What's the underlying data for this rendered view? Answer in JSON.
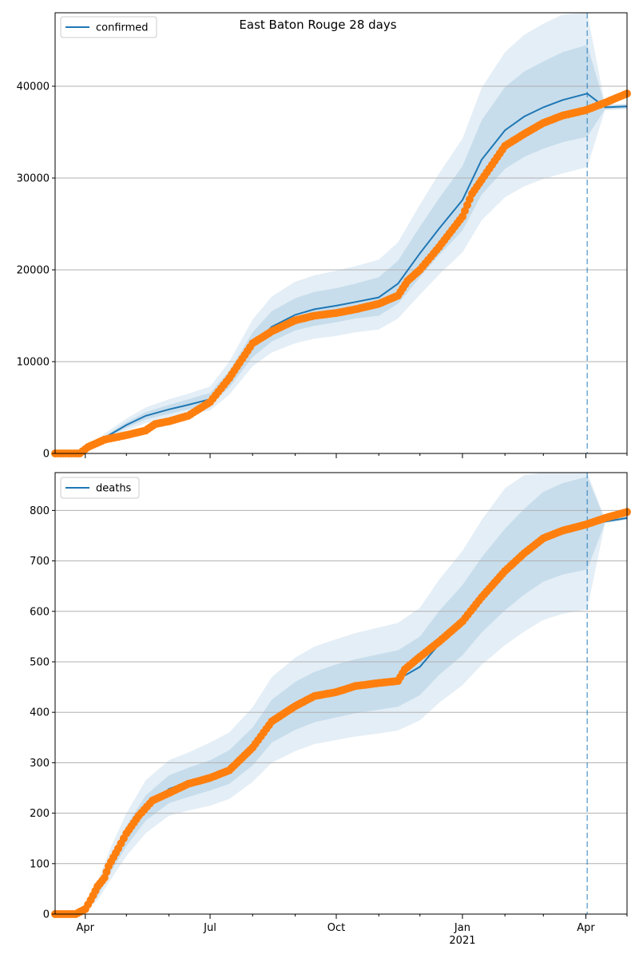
{
  "figure": {
    "title": "East Baton Rouge 28 days"
  },
  "colors": {
    "model_line": "#1f77b4",
    "observed": "#ff7f0e",
    "band": "#1f77b4",
    "grid": "#b0b0b0"
  },
  "x_ticks": {
    "major": [
      {
        "label": "Apr",
        "date": "2020-04-01",
        "sublabel": ""
      },
      {
        "label": "Jul",
        "date": "2020-07-01",
        "sublabel": ""
      },
      {
        "label": "Oct",
        "date": "2020-10-01",
        "sublabel": ""
      },
      {
        "label": "Jan",
        "date": "2021-01-01",
        "sublabel": "2021"
      },
      {
        "label": "Apr",
        "date": "2021-04-01",
        "sublabel": ""
      }
    ],
    "minor": [
      "2020-05-01",
      "2020-06-01",
      "2020-08-01",
      "2020-09-01",
      "2020-11-01",
      "2020-12-01",
      "2021-02-01",
      "2021-03-01",
      "2021-05-01"
    ]
  },
  "chart_data": [
    {
      "type": "line",
      "panel": "top",
      "legend": [
        "confirmed"
      ],
      "legend_position": "top-left",
      "grid": "horizontal",
      "xlim": [
        "2020-03-10",
        "2021-05-01"
      ],
      "ylim": [
        0,
        48000
      ],
      "y_ticks": [
        0,
        10000,
        20000,
        30000,
        40000
      ],
      "forecast_start": "2021-04-02",
      "model": {
        "name": "confirmed",
        "x": [
          "2020-03-10",
          "2020-03-25",
          "2020-04-01",
          "2020-04-15",
          "2020-05-01",
          "2020-05-15",
          "2020-06-01",
          "2020-06-15",
          "2020-07-01",
          "2020-07-15",
          "2020-08-01",
          "2020-08-15",
          "2020-09-01",
          "2020-09-15",
          "2020-10-01",
          "2020-10-15",
          "2020-11-01",
          "2020-11-15",
          "2020-12-01",
          "2020-12-15",
          "2021-01-01",
          "2021-01-15",
          "2021-02-01",
          "2021-02-15",
          "2021-03-01",
          "2021-03-15",
          "2021-04-02",
          "2021-04-15",
          "2021-05-01"
        ],
        "y": [
          0,
          0,
          500,
          1700,
          3100,
          4100,
          4800,
          5300,
          5900,
          8000,
          11800,
          13800,
          15100,
          15700,
          16100,
          16500,
          17000,
          18500,
          21800,
          24500,
          27600,
          32000,
          35200,
          36700,
          37700,
          38500,
          39200,
          37700,
          37800
        ],
        "band_50": [
          [
            0,
            0
          ],
          [
            0,
            0
          ],
          [
            450,
            550
          ],
          [
            1550,
            1900
          ],
          [
            2800,
            3400
          ],
          [
            3700,
            4500
          ],
          [
            4300,
            5300
          ],
          [
            4800,
            5900
          ],
          [
            5300,
            6600
          ],
          [
            7200,
            9000
          ],
          [
            10500,
            13200
          ],
          [
            12200,
            15500
          ],
          [
            13400,
            16900
          ],
          [
            13900,
            17600
          ],
          [
            14300,
            18000
          ],
          [
            14700,
            18500
          ],
          [
            15000,
            19200
          ],
          [
            16300,
            21000
          ],
          [
            19200,
            24700
          ],
          [
            21600,
            27800
          ],
          [
            24300,
            31300
          ],
          [
            28200,
            36300
          ],
          [
            31000,
            39900
          ],
          [
            32300,
            41600
          ],
          [
            33200,
            42700
          ],
          [
            33900,
            43700
          ],
          [
            34500,
            44500
          ],
          [
            37500,
            37900
          ],
          [
            37600,
            38000
          ]
        ],
        "band_80": [
          [
            0,
            0
          ],
          [
            0,
            0
          ],
          [
            380,
            650
          ],
          [
            1350,
            2150
          ],
          [
            2500,
            3800
          ],
          [
            3300,
            5000
          ],
          [
            3800,
            5900
          ],
          [
            4200,
            6500
          ],
          [
            4700,
            7300
          ],
          [
            6400,
            10000
          ],
          [
            9500,
            14600
          ],
          [
            11000,
            17100
          ],
          [
            12000,
            18700
          ],
          [
            12500,
            19400
          ],
          [
            12800,
            19900
          ],
          [
            13200,
            20400
          ],
          [
            13500,
            21100
          ],
          [
            14700,
            23000
          ],
          [
            17300,
            27100
          ],
          [
            19500,
            30500
          ],
          [
            21900,
            34300
          ],
          [
            25400,
            39800
          ],
          [
            27900,
            43700
          ],
          [
            29100,
            45600
          ],
          [
            29900,
            46800
          ],
          [
            30500,
            47800
          ],
          [
            31200,
            48000
          ],
          [
            37400,
            38000
          ],
          [
            37500,
            38100
          ]
        ]
      },
      "observed": {
        "x": [
          "2020-03-10",
          "2020-03-28",
          "2020-04-03",
          "2020-04-15",
          "2020-05-01",
          "2020-05-15",
          "2020-05-22",
          "2020-06-01",
          "2020-06-15",
          "2020-07-01",
          "2020-07-15",
          "2020-08-01",
          "2020-08-15",
          "2020-09-01",
          "2020-09-15",
          "2020-10-01",
          "2020-10-15",
          "2020-11-01",
          "2020-11-15",
          "2020-11-22",
          "2020-12-01",
          "2020-12-15",
          "2021-01-01",
          "2021-01-08",
          "2021-01-15",
          "2021-02-01",
          "2021-02-15",
          "2021-03-01",
          "2021-03-15",
          "2021-04-01",
          "2021-04-15",
          "2021-05-01"
        ],
        "y": [
          0,
          0,
          700,
          1500,
          2000,
          2500,
          3200,
          3500,
          4100,
          5600,
          8200,
          12000,
          13300,
          14500,
          15000,
          15300,
          15700,
          16300,
          17200,
          18800,
          20000,
          22500,
          25800,
          28300,
          29800,
          33500,
          34800,
          36000,
          36800,
          37400,
          38200,
          39200
        ]
      }
    },
    {
      "type": "line",
      "panel": "bottom",
      "legend": [
        "deaths"
      ],
      "legend_position": "top-left",
      "grid": "horizontal",
      "xlim": [
        "2020-03-10",
        "2021-05-01"
      ],
      "ylim": [
        0,
        875
      ],
      "y_ticks": [
        0,
        100,
        200,
        300,
        400,
        500,
        600,
        700,
        800
      ],
      "forecast_start": "2021-04-02",
      "model": {
        "name": "deaths",
        "x": [
          "2020-03-10",
          "2020-03-25",
          "2020-04-01",
          "2020-04-10",
          "2020-04-20",
          "2020-05-01",
          "2020-05-15",
          "2020-06-01",
          "2020-06-15",
          "2020-07-01",
          "2020-07-15",
          "2020-08-01",
          "2020-08-15",
          "2020-09-01",
          "2020-09-15",
          "2020-10-01",
          "2020-10-15",
          "2020-11-01",
          "2020-11-15",
          "2020-12-01",
          "2020-12-15",
          "2021-01-01",
          "2021-01-15",
          "2021-02-01",
          "2021-02-15",
          "2021-03-01",
          "2021-03-15",
          "2021-04-02",
          "2021-04-15",
          "2021-05-01"
        ],
        "y": [
          0,
          0,
          12,
          45,
          100,
          155,
          210,
          248,
          262,
          275,
          290,
          330,
          380,
          410,
          428,
          440,
          450,
          458,
          465,
          490,
          535,
          580,
          630,
          680,
          715,
          745,
          760,
          772,
          778,
          785
        ],
        "band_50": [
          [
            0,
            0
          ],
          [
            0,
            0
          ],
          [
            8,
            16
          ],
          [
            35,
            55
          ],
          [
            85,
            115
          ],
          [
            135,
            175
          ],
          [
            185,
            235
          ],
          [
            220,
            275
          ],
          [
            232,
            290
          ],
          [
            245,
            305
          ],
          [
            258,
            325
          ],
          [
            295,
            370
          ],
          [
            340,
            425
          ],
          [
            365,
            460
          ],
          [
            380,
            480
          ],
          [
            390,
            495
          ],
          [
            398,
            505
          ],
          [
            405,
            515
          ],
          [
            411,
            523
          ],
          [
            434,
            550
          ],
          [
            474,
            601
          ],
          [
            513,
            652
          ],
          [
            558,
            707
          ],
          [
            602,
            764
          ],
          [
            633,
            803
          ],
          [
            659,
            837
          ],
          [
            673,
            854
          ],
          [
            683,
            867
          ],
          [
            776,
            781
          ],
          [
            783,
            788
          ]
        ],
        "band_80": [
          [
            0,
            0
          ],
          [
            0,
            0
          ],
          [
            5,
            20
          ],
          [
            28,
            65
          ],
          [
            70,
            135
          ],
          [
            115,
            200
          ],
          [
            160,
            265
          ],
          [
            195,
            305
          ],
          [
            205,
            320
          ],
          [
            215,
            340
          ],
          [
            228,
            360
          ],
          [
            262,
            410
          ],
          [
            300,
            470
          ],
          [
            323,
            508
          ],
          [
            337,
            530
          ],
          [
            345,
            545
          ],
          [
            352,
            557
          ],
          [
            358,
            568
          ],
          [
            364,
            577
          ],
          [
            384,
            607
          ],
          [
            419,
            663
          ],
          [
            454,
            720
          ],
          [
            494,
            781
          ],
          [
            533,
            844
          ],
          [
            560,
            870
          ],
          [
            583,
            875
          ],
          [
            595,
            875
          ],
          [
            604,
            875
          ],
          [
            775,
            783
          ],
          [
            781,
            790
          ]
        ]
      },
      "observed": {
        "x": [
          "2020-03-10",
          "2020-03-25",
          "2020-04-01",
          "2020-04-05",
          "2020-04-10",
          "2020-04-15",
          "2020-04-18",
          "2020-04-25",
          "2020-05-01",
          "2020-05-10",
          "2020-05-20",
          "2020-06-01",
          "2020-06-15",
          "2020-07-01",
          "2020-07-15",
          "2020-08-01",
          "2020-08-15",
          "2020-09-01",
          "2020-09-15",
          "2020-10-01",
          "2020-10-15",
          "2020-11-01",
          "2020-11-15",
          "2020-11-20",
          "2020-12-01",
          "2020-12-15",
          "2021-01-01",
          "2021-01-15",
          "2021-02-01",
          "2021-02-15",
          "2021-03-01",
          "2021-03-15",
          "2021-04-01",
          "2021-04-15",
          "2021-05-01"
        ],
        "y": [
          0,
          0,
          10,
          28,
          55,
          72,
          95,
          130,
          160,
          195,
          225,
          240,
          258,
          270,
          285,
          330,
          382,
          412,
          432,
          440,
          452,
          458,
          462,
          485,
          510,
          540,
          580,
          628,
          680,
          715,
          745,
          760,
          772,
          785,
          797
        ]
      }
    }
  ]
}
